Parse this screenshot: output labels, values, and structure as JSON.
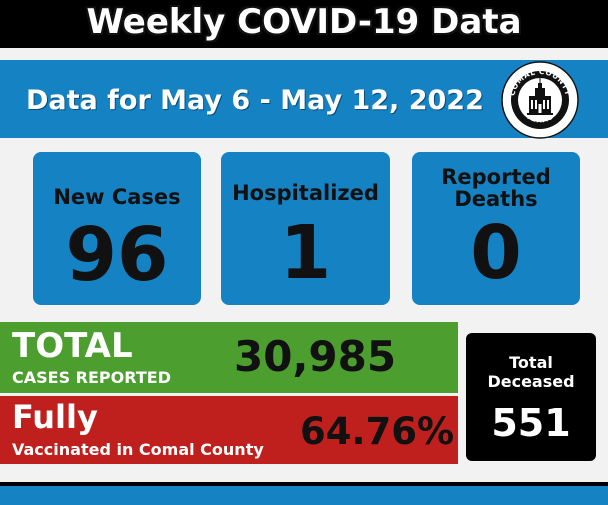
{
  "header": {
    "title": "Weekly COVID-19 Data"
  },
  "date_range": {
    "text": "Data for May 6 - May 12, 2022"
  },
  "seal": {
    "top_text": "COMAL COUNTY",
    "bottom_text": "TEXAS"
  },
  "stats": {
    "new_cases": {
      "label": "New Cases",
      "value": "96"
    },
    "hospitalized": {
      "label": "Hospitalized",
      "value": "1"
    },
    "deaths": {
      "label_line1": "Reported",
      "label_line2": "Deaths",
      "value": "0"
    }
  },
  "total_cases": {
    "title": "TOTAL",
    "subtitle": "CASES REPORTED",
    "value": "30,985"
  },
  "vaccinated": {
    "title": "Fully",
    "subtitle": "Vaccinated in Comal County",
    "value": "64.76%"
  },
  "deceased": {
    "label_line1": "Total",
    "label_line2": "Deceased",
    "value": "551"
  },
  "colors": {
    "blue": "#1582c4",
    "green": "#4c9e2e",
    "red": "#c0201d",
    "black": "#000000"
  }
}
